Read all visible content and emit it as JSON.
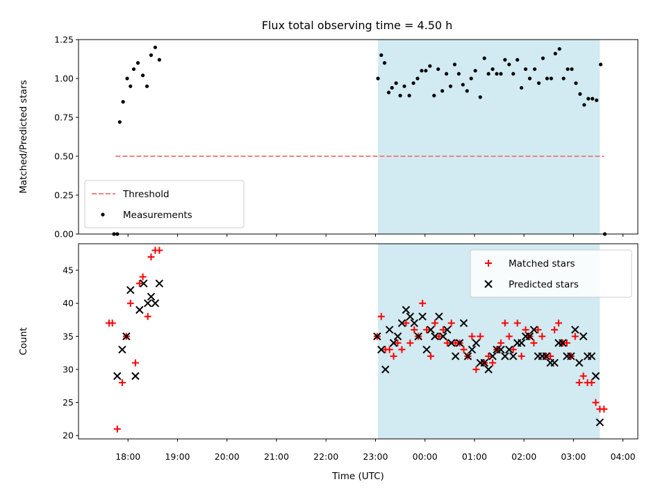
{
  "chart_data": [
    {
      "type": "scatter",
      "title": "Flux total observing time = 4.50 h",
      "xlabel": "",
      "ylabel": "Matched/Predicted stars",
      "ylim": [
        0,
        1.25
      ],
      "y_ticks": [
        "0.00",
        "0.25",
        "0.50",
        "0.75",
        "1.00",
        "1.25"
      ],
      "x_ticks": [
        "18:00",
        "19:00",
        "20:00",
        "21:00",
        "22:00",
        "23:00",
        "00:00",
        "01:00",
        "02:00",
        "03:00",
        "04:00"
      ],
      "x_tick_labels_visible": false,
      "legend": "lower-left",
      "highlight_span": {
        "start": "23:03",
        "end": "03:32",
        "color": "#add8e6"
      },
      "threshold": {
        "name": "Threshold",
        "y": 0.5,
        "x_start": "17:45",
        "x_end": "03:37",
        "color": "#f08080",
        "style": "dashed"
      },
      "series": [
        {
          "name": "Measurements",
          "color": "#000000",
          "marker": "dot",
          "points": [
            [
              "17:43",
              0.0
            ],
            [
              "17:47",
              0.0
            ],
            [
              "17:50",
              0.72
            ],
            [
              "17:54",
              0.85
            ],
            [
              "17:59",
              1.0
            ],
            [
              "18:03",
              0.95
            ],
            [
              "18:07",
              1.06
            ],
            [
              "18:12",
              1.1
            ],
            [
              "18:18",
              1.02
            ],
            [
              "18:23",
              0.95
            ],
            [
              "18:28",
              1.15
            ],
            [
              "18:33",
              1.2
            ],
            [
              "18:38",
              1.12
            ],
            [
              "23:03",
              1.0
            ],
            [
              "23:07",
              1.15
            ],
            [
              "23:11",
              1.1
            ],
            [
              "23:16",
              0.91
            ],
            [
              "23:20",
              0.94
            ],
            [
              "23:25",
              0.97
            ],
            [
              "23:30",
              0.89
            ],
            [
              "23:35",
              0.95
            ],
            [
              "23:41",
              0.89
            ],
            [
              "23:46",
              0.97
            ],
            [
              "23:51",
              1.0
            ],
            [
              "23:56",
              1.05
            ],
            [
              "00:01",
              1.05
            ],
            [
              "00:06",
              1.08
            ],
            [
              "00:11",
              0.89
            ],
            [
              "00:16",
              1.06
            ],
            [
              "00:21",
              0.92
            ],
            [
              "00:26",
              1.03
            ],
            [
              "00:31",
              0.95
            ],
            [
              "00:36",
              1.09
            ],
            [
              "00:41",
              1.03
            ],
            [
              "00:46",
              0.96
            ],
            [
              "00:51",
              0.92
            ],
            [
              "00:56",
              1.0
            ],
            [
              "01:01",
              1.05
            ],
            [
              "01:07",
              0.88
            ],
            [
              "01:12",
              1.13
            ],
            [
              "01:17",
              1.03
            ],
            [
              "01:22",
              1.06
            ],
            [
              "01:27",
              1.03
            ],
            [
              "01:32",
              1.03
            ],
            [
              "01:37",
              1.12
            ],
            [
              "01:42",
              1.09
            ],
            [
              "01:47",
              1.03
            ],
            [
              "01:52",
              1.12
            ],
            [
              "01:57",
              0.94
            ],
            [
              "02:02",
              1.06
            ],
            [
              "02:07",
              1.0
            ],
            [
              "02:13",
              1.06
            ],
            [
              "02:18",
              0.97
            ],
            [
              "02:23",
              1.13
            ],
            [
              "02:28",
              1.0
            ],
            [
              "02:33",
              1.0
            ],
            [
              "02:38",
              1.16
            ],
            [
              "02:43",
              1.19
            ],
            [
              "02:48",
              1.0
            ],
            [
              "02:53",
              1.06
            ],
            [
              "02:58",
              1.06
            ],
            [
              "03:03",
              0.97
            ],
            [
              "03:08",
              0.9
            ],
            [
              "03:13",
              0.83
            ],
            [
              "03:18",
              0.87
            ],
            [
              "03:23",
              0.87
            ],
            [
              "03:28",
              0.86
            ],
            [
              "03:33",
              1.09
            ],
            [
              "03:38",
              0.0
            ]
          ]
        }
      ]
    },
    {
      "type": "scatter",
      "title": "",
      "xlabel": "Time (UTC)",
      "ylabel": "Count",
      "ylim": [
        19.5,
        49
      ],
      "y_ticks": [
        "20",
        "25",
        "30",
        "35",
        "40",
        "45"
      ],
      "x_ticks": [
        "18:00",
        "19:00",
        "20:00",
        "21:00",
        "22:00",
        "23:00",
        "00:00",
        "01:00",
        "02:00",
        "03:00",
        "04:00"
      ],
      "x_tick_labels_visible": true,
      "legend": "upper-right",
      "highlight_span": {
        "start": "23:03",
        "end": "03:32",
        "color": "#add8e6"
      },
      "series": [
        {
          "name": "Matched stars",
          "color": "#ff0000",
          "marker": "plus",
          "points": [
            [
              "17:37",
              37
            ],
            [
              "17:41",
              37
            ],
            [
              "17:47",
              21
            ],
            [
              "17:53",
              28
            ],
            [
              "17:58",
              35
            ],
            [
              "18:03",
              40
            ],
            [
              "18:09",
              31
            ],
            [
              "18:14",
              43
            ],
            [
              "18:18",
              44
            ],
            [
              "18:24",
              38
            ],
            [
              "18:28",
              47
            ],
            [
              "18:33",
              48
            ],
            [
              "18:38",
              48
            ],
            [
              "23:02",
              35
            ],
            [
              "23:07",
              38
            ],
            [
              "23:12",
              33
            ],
            [
              "23:17",
              33
            ],
            [
              "23:22",
              32
            ],
            [
              "23:27",
              34
            ],
            [
              "23:32",
              33
            ],
            [
              "23:37",
              37
            ],
            [
              "23:42",
              34
            ],
            [
              "23:47",
              36
            ],
            [
              "23:52",
              35
            ],
            [
              "23:57",
              40
            ],
            [
              "00:02",
              36
            ],
            [
              "00:07",
              32
            ],
            [
              "00:12",
              37
            ],
            [
              "00:17",
              35
            ],
            [
              "00:22",
              36
            ],
            [
              "00:27",
              34
            ],
            [
              "00:32",
              37
            ],
            [
              "00:37",
              34
            ],
            [
              "00:42",
              34
            ],
            [
              "00:47",
              33
            ],
            [
              "00:52",
              32
            ],
            [
              "00:57",
              35
            ],
            [
              "01:02",
              30
            ],
            [
              "01:07",
              35
            ],
            [
              "01:12",
              31
            ],
            [
              "01:17",
              32
            ],
            [
              "01:22",
              31
            ],
            [
              "01:27",
              33
            ],
            [
              "01:32",
              34
            ],
            [
              "01:37",
              37
            ],
            [
              "01:42",
              35
            ],
            [
              "01:47",
              33
            ],
            [
              "01:52",
              37
            ],
            [
              "01:57",
              32
            ],
            [
              "02:02",
              36
            ],
            [
              "02:07",
              35
            ],
            [
              "02:12",
              34
            ],
            [
              "02:17",
              36
            ],
            [
              "02:22",
              35
            ],
            [
              "02:27",
              32
            ],
            [
              "02:32",
              32
            ],
            [
              "02:37",
              36
            ],
            [
              "02:42",
              37
            ],
            [
              "02:47",
              34
            ],
            [
              "02:52",
              34
            ],
            [
              "02:57",
              32
            ],
            [
              "03:02",
              35
            ],
            [
              "03:07",
              28
            ],
            [
              "03:12",
              29
            ],
            [
              "03:17",
              28
            ],
            [
              "03:22",
              28
            ],
            [
              "03:27",
              25
            ],
            [
              "03:32",
              24
            ],
            [
              "03:37",
              24
            ]
          ]
        },
        {
          "name": "Predicted stars",
          "color": "#000000",
          "marker": "x",
          "points": [
            [
              "17:47",
              29
            ],
            [
              "17:53",
              33
            ],
            [
              "17:58",
              35
            ],
            [
              "18:03",
              42
            ],
            [
              "18:09",
              29
            ],
            [
              "18:14",
              39
            ],
            [
              "18:19",
              43
            ],
            [
              "18:24",
              40
            ],
            [
              "18:28",
              41
            ],
            [
              "18:33",
              40
            ],
            [
              "18:38",
              43
            ],
            [
              "23:02",
              35
            ],
            [
              "23:07",
              33
            ],
            [
              "23:12",
              30
            ],
            [
              "23:17",
              36
            ],
            [
              "23:22",
              34
            ],
            [
              "23:27",
              35
            ],
            [
              "23:32",
              37
            ],
            [
              "23:37",
              39
            ],
            [
              "23:42",
              38
            ],
            [
              "23:47",
              37
            ],
            [
              "23:52",
              35
            ],
            [
              "23:57",
              38
            ],
            [
              "00:02",
              33
            ],
            [
              "00:07",
              36
            ],
            [
              "00:12",
              35
            ],
            [
              "00:17",
              38
            ],
            [
              "00:22",
              35
            ],
            [
              "00:27",
              36
            ],
            [
              "00:32",
              34
            ],
            [
              "00:37",
              32
            ],
            [
              "00:42",
              34
            ],
            [
              "00:47",
              37
            ],
            [
              "00:52",
              32
            ],
            [
              "00:57",
              33
            ],
            [
              "01:02",
              34
            ],
            [
              "01:07",
              31
            ],
            [
              "01:12",
              31
            ],
            [
              "01:17",
              30
            ],
            [
              "01:22",
              32
            ],
            [
              "01:27",
              33
            ],
            [
              "01:32",
              33
            ],
            [
              "01:37",
              32
            ],
            [
              "01:42",
              33
            ],
            [
              "01:47",
              32
            ],
            [
              "01:52",
              34
            ],
            [
              "01:57",
              34
            ],
            [
              "02:02",
              35
            ],
            [
              "02:07",
              35
            ],
            [
              "02:12",
              36
            ],
            [
              "02:17",
              32
            ],
            [
              "02:22",
              32
            ],
            [
              "02:27",
              32
            ],
            [
              "02:32",
              31
            ],
            [
              "02:37",
              31
            ],
            [
              "02:42",
              34
            ],
            [
              "02:47",
              34
            ],
            [
              "02:52",
              32
            ],
            [
              "02:57",
              32
            ],
            [
              "03:02",
              36
            ],
            [
              "03:07",
              31
            ],
            [
              "03:12",
              35
            ],
            [
              "03:17",
              32
            ],
            [
              "03:22",
              32
            ],
            [
              "03:27",
              29
            ],
            [
              "03:32",
              22
            ]
          ]
        }
      ]
    }
  ]
}
